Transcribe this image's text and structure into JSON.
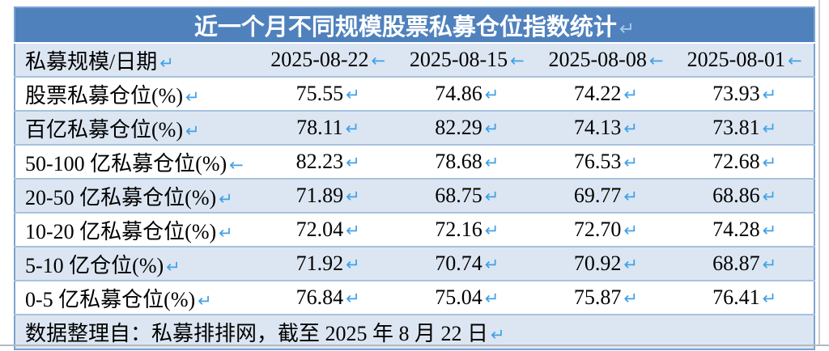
{
  "table": {
    "title": "近一个月不同规模股票私募仓位指数统计",
    "title_marker": "↵",
    "header": {
      "label": "私募规模/日期",
      "label_marker": "↵",
      "dates": [
        "2025-08-22",
        "2025-08-15",
        "2025-08-08",
        "2025-08-01"
      ],
      "date_marker": "←"
    },
    "rows": [
      {
        "label": "股票私募仓位(%)",
        "label_marker": "↵",
        "values": [
          "75.55",
          "74.86",
          "74.22",
          "73.93"
        ]
      },
      {
        "label": "百亿私募仓位(%)",
        "label_marker": "↵",
        "values": [
          "78.11",
          "82.29",
          "74.13",
          "73.81"
        ]
      },
      {
        "label": "50-100 亿私募仓位(%)",
        "label_marker": "←",
        "values": [
          "82.23",
          "78.68",
          "76.53",
          "72.68"
        ]
      },
      {
        "label": "20-50 亿私募仓位(%)",
        "label_marker": "↵",
        "values": [
          "71.89",
          "68.75",
          "69.77",
          "68.86"
        ]
      },
      {
        "label": "10-20 亿私募仓位(%)",
        "label_marker": "↵",
        "values": [
          "72.04",
          "72.16",
          "72.70",
          "74.28"
        ]
      },
      {
        "label": "5-10 亿仓位(%)",
        "label_marker": "↵",
        "values": [
          "71.92",
          "70.74",
          "70.92",
          "68.87"
        ]
      },
      {
        "label": "0-5 亿私募仓位(%)",
        "label_marker": "↵",
        "values": [
          "76.84",
          "75.04",
          "75.87",
          "76.41"
        ]
      }
    ],
    "value_marker": "↵",
    "footer": "数据整理自：私募排排网，截至 2025 年 8 月 22 日",
    "footer_marker": "↵",
    "colors": {
      "title_bg": "#4f81bd",
      "band_bg": "#dce6f2",
      "marker_blue": "#41a0e8",
      "separator": "#a6c1e0",
      "outer_border": "#7ca3d1"
    }
  }
}
